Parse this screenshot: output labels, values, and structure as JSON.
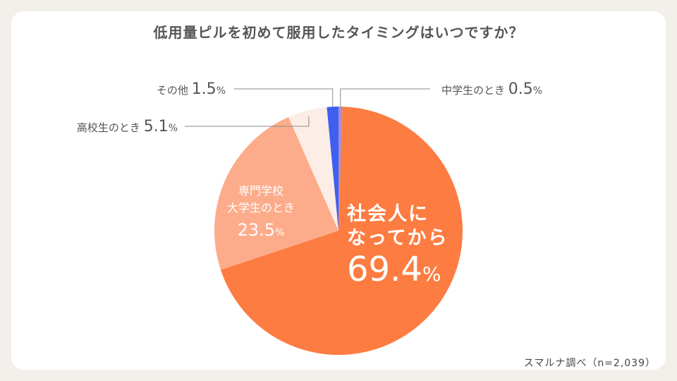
{
  "chart_data": {
    "type": "pie",
    "title": "低用量ピルを初めて服用したタイミングはいつですか？",
    "source": "スマルナ調べ（n=2,039）",
    "percent_sign": "%",
    "slices": [
      {
        "label": "中学生のとき",
        "value": 0.5,
        "value_text": "0.5",
        "color": "#a88ed0"
      },
      {
        "label": "社会人になってから",
        "value": 69.4,
        "value_text": "69.4",
        "color": "#fd7c41"
      },
      {
        "label": "専門学校大学生のとき",
        "value": 23.5,
        "value_text": "23.5",
        "color": "#fcac8a"
      },
      {
        "label": "高校生のとき",
        "value": 5.1,
        "value_text": "5.1",
        "color": "#fdede7"
      },
      {
        "label": "その他",
        "value": 1.5,
        "value_text": "1.5",
        "color": "#3f5ff0"
      }
    ],
    "slice_label_lines": [
      [],
      [
        "社会人に",
        "なってから"
      ],
      [
        "専門学校",
        "大学生のとき"
      ],
      [],
      []
    ]
  }
}
